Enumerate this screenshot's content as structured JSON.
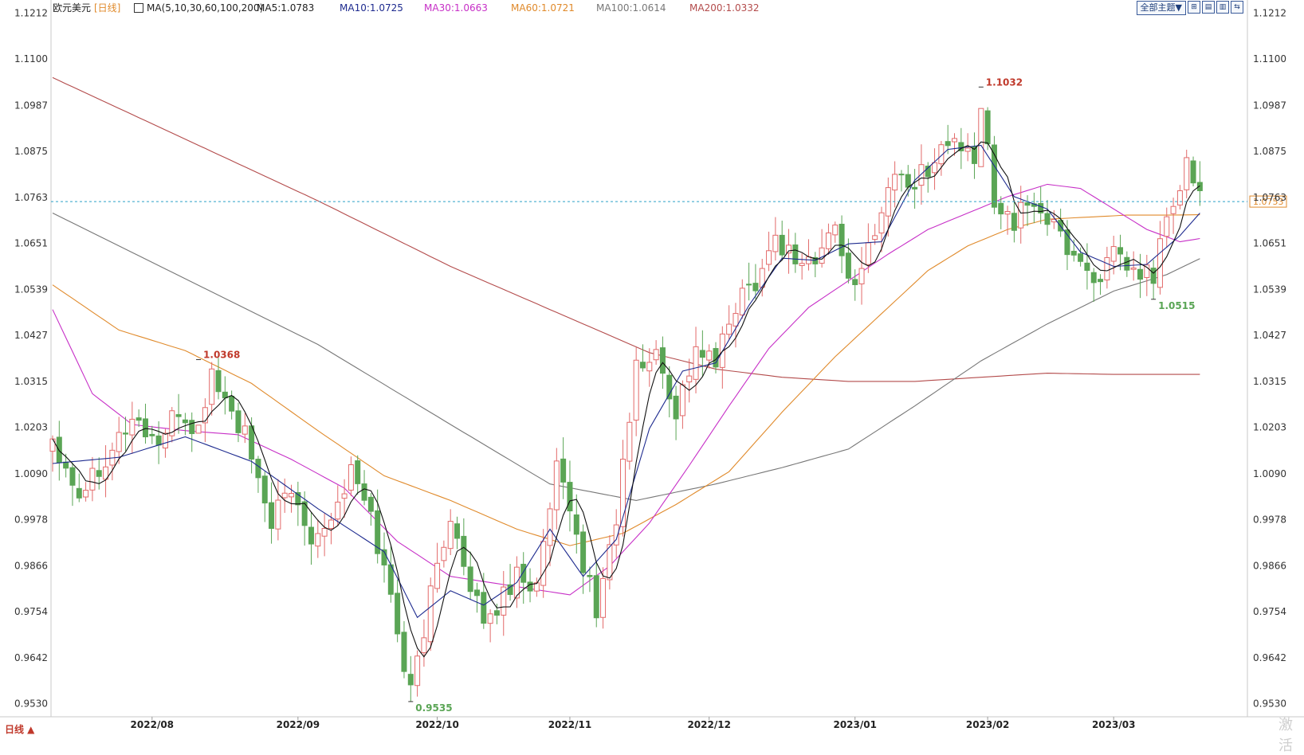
{
  "header": {
    "symbol": "欧元美元",
    "period": "[日线]",
    "ma_set": "MA(5,10,30,60,100,200)",
    "ma5": "MA5:1.0783",
    "ma10": "MA10:1.0725",
    "ma30": "MA30:1.0663",
    "ma60": "MA60:1.0721",
    "ma100": "MA100:1.0614",
    "ma200": "MA200:1.0332"
  },
  "toolbar": {
    "theme_label": "全部主题▼",
    "buttons": [
      "⊞",
      "▤",
      "▥",
      "⇆"
    ]
  },
  "period_tag": "日线 ▲",
  "watermark": "激活",
  "colors": {
    "up": "#e26a6a",
    "down": "#5aa555",
    "ma5": "#111111",
    "ma10": "#1e2b8f",
    "ma30": "#c72fc7",
    "ma60": "#e08a2b",
    "ma100": "#777777",
    "ma200": "#b34b4b",
    "last_line": "#2ba0c8"
  },
  "chart_data": {
    "type": "candlestick",
    "y_ticks": [
      "1.1212",
      "1.1100",
      "1.0987",
      "1.0875",
      "1.0763",
      "1.0651",
      "1.0539",
      "1.0427",
      "1.0315",
      "1.0203",
      "1.0090",
      "0.9978",
      "0.9866",
      "0.9754",
      "0.9642",
      "0.9530"
    ],
    "ylim": [
      0.9498,
      1.1244
    ],
    "x_ticks": [
      {
        "label": "2022/08",
        "index": 15
      },
      {
        "label": "2022/09",
        "index": 37
      },
      {
        "label": "2022/10",
        "index": 58
      },
      {
        "label": "2022/11",
        "index": 78
      },
      {
        "label": "2022/12",
        "index": 99
      },
      {
        "label": "2023/01",
        "index": 121
      },
      {
        "label": "2023/02",
        "index": 141
      },
      {
        "label": "2023/03",
        "index": 160
      }
    ],
    "annotations": [
      {
        "text": "1.0368",
        "index": 22,
        "value": 1.0368,
        "color": "#c0392b"
      },
      {
        "text": "0.9535",
        "index": 54,
        "value": 0.9535,
        "color": "#5aa555"
      },
      {
        "text": "1.1032",
        "index": 140,
        "value": 1.1032,
        "color": "#c0392b"
      },
      {
        "text": "1.0515",
        "index": 166,
        "value": 1.0515,
        "color": "#5aa555"
      }
    ],
    "last_price": "1.0753",
    "anchors": [
      [
        0,
        1.018
      ],
      [
        4,
        1.0045
      ],
      [
        8,
        1.0135
      ],
      [
        12,
        1.0225
      ],
      [
        16,
        1.0165
      ],
      [
        19,
        1.024
      ],
      [
        22,
        1.019
      ],
      [
        24,
        1.034
      ],
      [
        26,
        1.0265
      ],
      [
        29,
        1.018
      ],
      [
        31,
        1.0055
      ],
      [
        33,
        0.998
      ],
      [
        36,
        1.0045
      ],
      [
        39,
        0.9945
      ],
      [
        42,
        0.9985
      ],
      [
        45,
        1.0095
      ],
      [
        48,
        0.9985
      ],
      [
        51,
        0.979
      ],
      [
        54,
        0.9555
      ],
      [
        57,
        0.9795
      ],
      [
        60,
        1.0
      ],
      [
        63,
        0.978
      ],
      [
        66,
        0.9735
      ],
      [
        70,
        0.9855
      ],
      [
        73,
        0.981
      ],
      [
        76,
        1.0095
      ],
      [
        79,
        0.9935
      ],
      [
        82,
        0.9755
      ],
      [
        85,
        0.9985
      ],
      [
        88,
        1.0345
      ],
      [
        91,
        1.038
      ],
      [
        94,
        1.0245
      ],
      [
        97,
        1.0395
      ],
      [
        100,
        1.0355
      ],
      [
        103,
        1.0505
      ],
      [
        106,
        1.0565
      ],
      [
        109,
        1.0665
      ],
      [
        112,
        1.0615
      ],
      [
        115,
        1.0605
      ],
      [
        118,
        1.0695
      ],
      [
        121,
        1.0525
      ],
      [
        124,
        1.0695
      ],
      [
        127,
        1.0825
      ],
      [
        130,
        1.0795
      ],
      [
        133,
        1.0865
      ],
      [
        136,
        1.0905
      ],
      [
        139,
        1.0835
      ],
      [
        140,
        1.0985
      ],
      [
        142,
        1.0765
      ],
      [
        145,
        1.0705
      ],
      [
        148,
        1.0755
      ],
      [
        151,
        1.0685
      ],
      [
        154,
        1.0625
      ],
      [
        157,
        1.0565
      ],
      [
        160,
        1.0615
      ],
      [
        163,
        1.0575
      ],
      [
        166,
        1.0575
      ],
      [
        168,
        1.0715
      ],
      [
        170,
        1.0765
      ],
      [
        171,
        1.0845
      ],
      [
        173,
        1.0775
      ]
    ],
    "ma_overlays": [
      {
        "name": "MA10",
        "color": "#1e2b8f",
        "anchors": [
          [
            0,
            1.0115
          ],
          [
            10,
            1.013
          ],
          [
            20,
            1.018
          ],
          [
            30,
            1.012
          ],
          [
            40,
            1.0005
          ],
          [
            50,
            0.99
          ],
          [
            55,
            0.974
          ],
          [
            60,
            0.9805
          ],
          [
            65,
            0.977
          ],
          [
            70,
            0.9825
          ],
          [
            75,
            0.9955
          ],
          [
            80,
            0.984
          ],
          [
            85,
            0.993
          ],
          [
            90,
            1.02
          ],
          [
            95,
            1.034
          ],
          [
            100,
            1.036
          ],
          [
            105,
            1.05
          ],
          [
            110,
            1.0615
          ],
          [
            115,
            1.061
          ],
          [
            120,
            1.065
          ],
          [
            125,
            1.0655
          ],
          [
            130,
            1.0805
          ],
          [
            135,
            1.088
          ],
          [
            140,
            1.089
          ],
          [
            145,
            1.0765
          ],
          [
            150,
            1.0735
          ],
          [
            155,
            1.063
          ],
          [
            160,
            1.0595
          ],
          [
            165,
            1.06
          ],
          [
            170,
            1.067
          ],
          [
            173,
            1.0725
          ]
        ]
      },
      {
        "name": "MA30",
        "color": "#c72fc7",
        "anchors": [
          [
            0,
            1.049
          ],
          [
            6,
            1.0285
          ],
          [
            12,
            1.021
          ],
          [
            20,
            1.0195
          ],
          [
            28,
            1.0185
          ],
          [
            36,
            1.0125
          ],
          [
            44,
            1.0055
          ],
          [
            52,
            0.9925
          ],
          [
            60,
            0.984
          ],
          [
            70,
            0.9815
          ],
          [
            78,
            0.9795
          ],
          [
            84,
            0.9865
          ],
          [
            90,
            0.997
          ],
          [
            96,
            1.011
          ],
          [
            102,
            1.0255
          ],
          [
            108,
            1.0395
          ],
          [
            114,
            1.0495
          ],
          [
            120,
            1.056
          ],
          [
            126,
            1.0625
          ],
          [
            132,
            1.0685
          ],
          [
            138,
            1.0725
          ],
          [
            144,
            1.0765
          ],
          [
            150,
            1.0795
          ],
          [
            155,
            1.0785
          ],
          [
            160,
            1.0735
          ],
          [
            165,
            1.0685
          ],
          [
            170,
            1.0655
          ],
          [
            173,
            1.0663
          ]
        ]
      },
      {
        "name": "MA60",
        "color": "#e08a2b",
        "anchors": [
          [
            0,
            1.055
          ],
          [
            10,
            1.044
          ],
          [
            20,
            1.039
          ],
          [
            30,
            1.031
          ],
          [
            40,
            1.0195
          ],
          [
            50,
            1.0085
          ],
          [
            60,
            1.0025
          ],
          [
            70,
            0.9955
          ],
          [
            78,
            0.9915
          ],
          [
            86,
            0.9945
          ],
          [
            94,
            1.0015
          ],
          [
            102,
            1.0095
          ],
          [
            110,
            1.024
          ],
          [
            118,
            1.0375
          ],
          [
            126,
            1.0495
          ],
          [
            132,
            1.0585
          ],
          [
            138,
            1.0645
          ],
          [
            144,
            1.0685
          ],
          [
            150,
            1.071
          ],
          [
            156,
            1.0715
          ],
          [
            162,
            1.072
          ],
          [
            168,
            1.072
          ],
          [
            173,
            1.0721
          ]
        ]
      },
      {
        "name": "MA100",
        "color": "#777777",
        "anchors": [
          [
            0,
            1.0725
          ],
          [
            20,
            1.0565
          ],
          [
            40,
            1.0405
          ],
          [
            60,
            1.021
          ],
          [
            75,
            1.0065
          ],
          [
            88,
            1.0025
          ],
          [
            100,
            1.0065
          ],
          [
            110,
            1.0105
          ],
          [
            120,
            1.015
          ],
          [
            130,
            1.0255
          ],
          [
            140,
            1.0365
          ],
          [
            150,
            1.0455
          ],
          [
            160,
            1.0535
          ],
          [
            168,
            1.0575
          ],
          [
            173,
            1.0614
          ]
        ]
      },
      {
        "name": "MA200",
        "color": "#b34b4b",
        "anchors": [
          [
            0,
            1.1055
          ],
          [
            20,
            1.0905
          ],
          [
            40,
            1.0755
          ],
          [
            60,
            1.0595
          ],
          [
            80,
            1.0455
          ],
          [
            90,
            1.0385
          ],
          [
            100,
            1.0345
          ],
          [
            110,
            1.0325
          ],
          [
            120,
            1.0315
          ],
          [
            130,
            1.0315
          ],
          [
            140,
            1.0325
          ],
          [
            150,
            1.0335
          ],
          [
            160,
            1.0332
          ],
          [
            173,
            1.0332
          ]
        ]
      }
    ]
  }
}
